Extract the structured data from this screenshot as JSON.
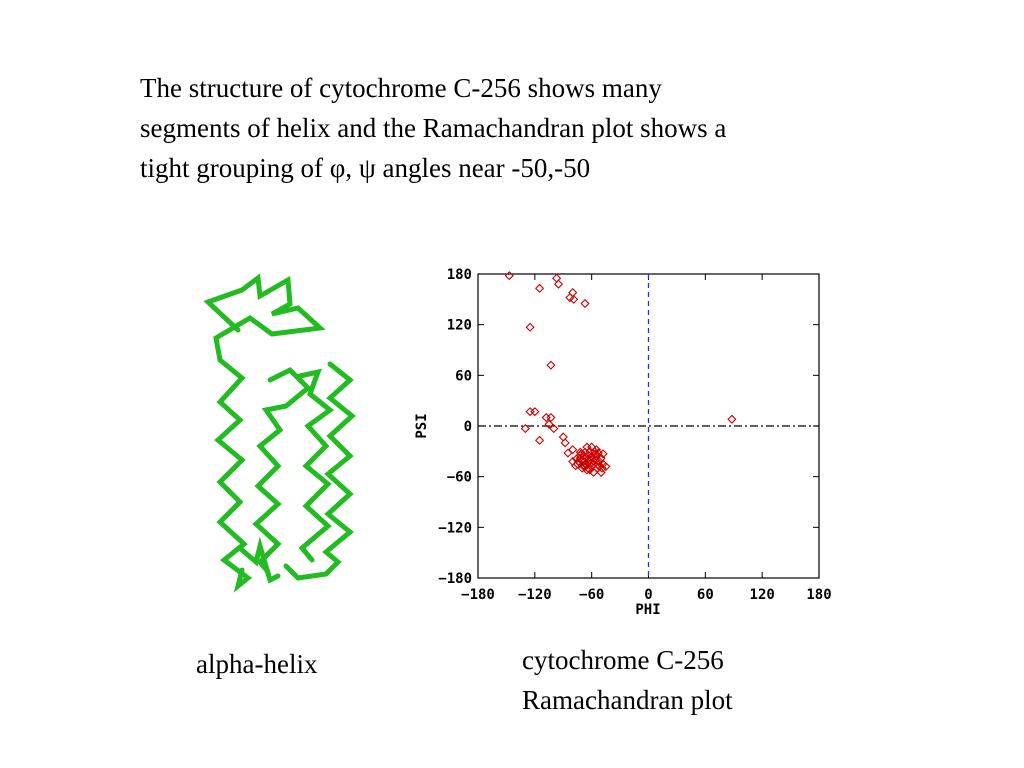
{
  "intro": {
    "line1": "The structure of cytochrome C-256 shows many",
    "line2": "segments of helix and the Ramachandran plot shows a",
    "line3": "tight grouping of φ, ψ angles near -50,-50"
  },
  "captions": {
    "helix": "alpha-helix",
    "plot_line1": "cytochrome C-256",
    "plot_line2": "Ramachandran plot"
  },
  "helix_image": {
    "color": "#22bb22"
  },
  "chart_data": {
    "type": "scatter",
    "xlabel": "PHI",
    "ylabel": "PSI",
    "xlim": [
      -180,
      180
    ],
    "ylim": [
      -180,
      180
    ],
    "xticks": [
      -180,
      -120,
      -60,
      0,
      60,
      120,
      180
    ],
    "yticks": [
      -180,
      -120,
      -60,
      0,
      60,
      120,
      180
    ],
    "marker": "diamond",
    "marker_color": "#cc0000",
    "reference_lines": {
      "x0_color": "#2233cc",
      "x0_style": "dashed",
      "y0_color": "#000000",
      "y0_style": "dash-dot"
    },
    "points": [
      [
        -147,
        178
      ],
      [
        -97,
        175
      ],
      [
        -95,
        168
      ],
      [
        -115,
        163
      ],
      [
        -80,
        158
      ],
      [
        -83,
        152
      ],
      [
        -79,
        150
      ],
      [
        -67,
        145
      ],
      [
        -125,
        117
      ],
      [
        -103,
        72
      ],
      [
        -125,
        17
      ],
      [
        -120,
        17
      ],
      [
        -108,
        10
      ],
      [
        -103,
        10
      ],
      [
        -105,
        2
      ],
      [
        -130,
        -3
      ],
      [
        -100,
        -3
      ],
      [
        -115,
        -17
      ],
      [
        -90,
        -13
      ],
      [
        -88,
        -20
      ],
      [
        -80,
        -28
      ],
      [
        -80,
        -42
      ],
      [
        -85,
        -32
      ],
      [
        -72,
        -35
      ],
      [
        -65,
        -25
      ],
      [
        -60,
        -25
      ],
      [
        -55,
        -28
      ],
      [
        -53,
        -32
      ],
      [
        -50,
        -38
      ],
      [
        -48,
        -45
      ],
      [
        -52,
        -48
      ],
      [
        -67,
        -48
      ],
      [
        -62,
        -52
      ],
      [
        -45,
        -48
      ],
      [
        -75,
        -45
      ],
      [
        -70,
        -40
      ],
      [
        -58,
        -42
      ],
      [
        -66,
        -38
      ],
      [
        -60,
        -36
      ],
      [
        -56,
        -40
      ],
      [
        -64,
        -44
      ],
      [
        -68,
        -35
      ],
      [
        -72,
        -38
      ],
      [
        -62,
        -30
      ],
      [
        -58,
        -45
      ],
      [
        -54,
        -50
      ],
      [
        -50,
        -55
      ],
      [
        -65,
        -52
      ],
      [
        -70,
        -50
      ],
      [
        -58,
        -55
      ],
      [
        -60,
        -48
      ],
      [
        -56,
        -33
      ],
      [
        -62,
        -40
      ],
      [
        -66,
        -46
      ],
      [
        -68,
        -42
      ],
      [
        -74,
        -42
      ],
      [
        -55,
        -36
      ],
      [
        -52,
        -42
      ],
      [
        -59,
        -38
      ],
      [
        -63,
        -35
      ],
      [
        -57,
        -30
      ],
      [
        -61,
        -44
      ],
      [
        -64,
        -50
      ],
      [
        -67,
        -31
      ],
      [
        -48,
        -33
      ],
      [
        -71,
        -33
      ],
      [
        -69,
        -47
      ],
      [
        -53,
        -46
      ],
      [
        -49,
        -50
      ],
      [
        -77,
        -47
      ],
      [
        -76,
        -39
      ],
      [
        -72,
        -31
      ],
      [
        88,
        8
      ]
    ]
  }
}
